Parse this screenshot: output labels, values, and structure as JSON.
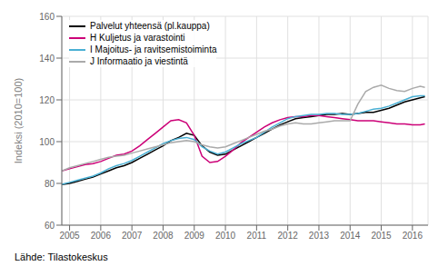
{
  "chart_data": {
    "type": "line",
    "ylabel": "Indeksi (2010=100)",
    "annotations": [
      "Lähde: Tilastokeskus"
    ],
    "xlim": [
      2004.75,
      2016.5
    ],
    "xticks": [
      2005,
      2006,
      2007,
      2008,
      2009,
      2010,
      2011,
      2012,
      2013,
      2014,
      2015,
      2016
    ],
    "ylim": [
      60,
      160
    ],
    "yticks": [
      60,
      80,
      100,
      120,
      140,
      160
    ],
    "grid": true,
    "legend": "upper left",
    "x": [
      2004.75,
      2005.0,
      2005.25,
      2005.5,
      2005.75,
      2006.0,
      2006.25,
      2006.5,
      2006.75,
      2007.0,
      2007.25,
      2007.5,
      2007.75,
      2008.0,
      2008.25,
      2008.5,
      2008.75,
      2009.0,
      2009.25,
      2009.5,
      2009.75,
      2010.0,
      2010.25,
      2010.5,
      2010.75,
      2011.0,
      2011.25,
      2011.5,
      2011.75,
      2012.0,
      2012.25,
      2012.5,
      2012.75,
      2013.0,
      2013.25,
      2013.5,
      2013.75,
      2014.0,
      2014.25,
      2014.5,
      2014.75,
      2015.0,
      2015.25,
      2015.5,
      2015.75,
      2016.0,
      2016.25,
      2016.4
    ],
    "series": [
      {
        "name": "Palvelut yhteensä (pl.kauppa)",
        "color": "#000000",
        "values": [
          79.5,
          80.0,
          81.0,
          82.0,
          83.0,
          84.5,
          86.0,
          87.5,
          88.5,
          90.0,
          92.0,
          94.0,
          96.0,
          98.0,
          100.5,
          102.0,
          104.0,
          103.0,
          98.0,
          95.0,
          93.5,
          94.0,
          96.0,
          98.0,
          100.0,
          102.0,
          104.0,
          106.0,
          108.0,
          109.5,
          111.0,
          111.5,
          112.0,
          112.5,
          113.0,
          113.0,
          113.5,
          113.0,
          113.5,
          114.0,
          114.0,
          115.0,
          116.0,
          117.5,
          119.0,
          120.0,
          121.0,
          121.5
        ]
      },
      {
        "name": "H Kuljetus ja varastointi",
        "color": "#cc0077",
        "values": [
          86.0,
          87.0,
          88.0,
          89.0,
          89.5,
          90.5,
          92.0,
          93.5,
          94.0,
          95.5,
          98.0,
          101.0,
          104.0,
          107.0,
          110.0,
          110.5,
          109.0,
          103.0,
          93.0,
          90.0,
          90.5,
          93.0,
          96.0,
          99.5,
          102.0,
          104.5,
          107.0,
          109.0,
          110.5,
          111.5,
          112.0,
          112.0,
          112.5,
          112.5,
          112.0,
          111.5,
          111.0,
          110.5,
          110.0,
          110.0,
          110.0,
          109.5,
          109.0,
          108.5,
          108.5,
          108.0,
          108.0,
          108.5
        ]
      },
      {
        "name": "I Majoitus- ja ravitsemistoiminta",
        "color": "#4ab0d4",
        "values": [
          79.5,
          80.5,
          81.5,
          82.5,
          83.5,
          85.0,
          87.0,
          88.5,
          89.5,
          91.0,
          93.0,
          95.0,
          97.0,
          99.0,
          100.5,
          101.5,
          102.0,
          101.0,
          97.5,
          95.5,
          94.0,
          95.0,
          97.0,
          99.0,
          100.5,
          102.0,
          104.5,
          107.0,
          109.0,
          111.0,
          112.0,
          112.5,
          113.0,
          113.0,
          113.5,
          113.5,
          113.0,
          113.0,
          113.5,
          114.5,
          115.5,
          116.0,
          117.0,
          118.5,
          120.0,
          121.5,
          122.0,
          122.0
        ]
      },
      {
        "name": "J Informaatio ja viestintä",
        "color": "#aaaaaa",
        "values": [
          86.0,
          87.5,
          88.5,
          89.5,
          90.5,
          91.5,
          92.5,
          93.0,
          93.5,
          94.5,
          95.5,
          96.5,
          97.5,
          98.5,
          99.5,
          100.0,
          100.5,
          100.0,
          98.5,
          97.5,
          97.0,
          97.5,
          99.0,
          100.5,
          102.0,
          103.5,
          105.0,
          106.0,
          107.5,
          108.5,
          109.0,
          108.5,
          108.5,
          109.0,
          109.5,
          110.0,
          110.0,
          110.0,
          118.0,
          124.0,
          126.0,
          127.0,
          125.5,
          124.5,
          124.0,
          125.5,
          126.5,
          126.0
        ]
      }
    ]
  }
}
